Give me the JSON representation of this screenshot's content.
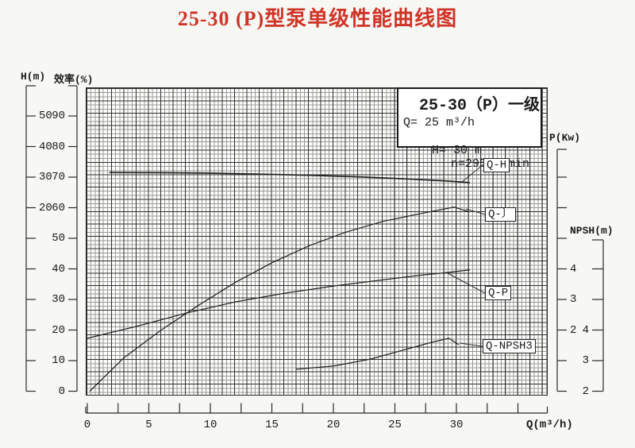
{
  "title": "25-30 (P)型泵单级性能曲线图",
  "legend": {
    "model": "25-30（P）",
    "stage": "一级",
    "flow": "Q= 25 m³/h",
    "head": "H= 30 m",
    "speed": "n=2950r/min"
  },
  "axes": {
    "h": {
      "label": "H(m)",
      "ticks": [
        "50",
        "40",
        "30",
        "20"
      ]
    },
    "eff": {
      "label": "效率(%)",
      "ticks": [
        "90",
        "80",
        "70",
        "60",
        "50",
        "40",
        "30",
        "20",
        "10",
        "0"
      ]
    },
    "p": {
      "label": "P(Kw)",
      "ticks": [
        "4",
        "3",
        "2"
      ]
    },
    "npsh": {
      "label": "NPSH(m)",
      "ticks": [
        "4",
        "3",
        "2"
      ]
    },
    "q": {
      "label": "Q(m³/h)",
      "ticks": [
        "0",
        "5",
        "10",
        "15",
        "20",
        "25",
        "30"
      ]
    }
  },
  "curve_labels": {
    "qh": "Q-H",
    "qeta": "Q-〕",
    "qp": "Q-P",
    "qnpsh": "Q-NPSH3"
  },
  "chart_data": {
    "type": "line",
    "title": "25-30 (P)型泵单级性能曲线图",
    "xlabel": "Q(m³/h)",
    "x_range": [
      0,
      35
    ],
    "x_minor_tick_step": 2.5,
    "x_labeled_tick_step": 5,
    "grid": true,
    "y_axes": [
      {
        "id": "H",
        "label": "H(m)",
        "labeled_ticks": [
          20,
          30,
          40,
          50
        ]
      },
      {
        "id": "eff",
        "label": "效率(%)",
        "labeled_ticks": [
          0,
          10,
          20,
          30,
          40,
          50,
          60,
          70,
          80,
          90
        ]
      },
      {
        "id": "P",
        "label": "P(Kw)",
        "labeled_ticks": [
          2,
          3,
          4
        ]
      },
      {
        "id": "NPSH",
        "label": "NPSH(m)",
        "labeled_ticks": [
          2,
          3,
          4
        ]
      }
    ],
    "series": [
      {
        "name": "Q-H",
        "y_axis": "H",
        "display_label": "Q-H",
        "points": [
          [
            1.8,
            31.5
          ],
          [
            6,
            31.45
          ],
          [
            10,
            31.3
          ],
          [
            14,
            31.0
          ],
          [
            18,
            30.6
          ],
          [
            22,
            30.1
          ],
          [
            26,
            29.4
          ],
          [
            29,
            28.8
          ],
          [
            31.1,
            28.2
          ]
        ]
      },
      {
        "name": "Q-η",
        "y_axis": "eff",
        "display_label": "Q-〕",
        "points": [
          [
            0.2,
            0
          ],
          [
            3,
            11
          ],
          [
            6,
            20
          ],
          [
            9,
            28
          ],
          [
            12,
            35.5
          ],
          [
            15,
            42
          ],
          [
            18,
            47.5
          ],
          [
            21,
            52
          ],
          [
            24,
            55.5
          ],
          [
            27,
            58
          ],
          [
            29.8,
            60.2
          ],
          [
            31.1,
            58.6
          ]
        ]
      },
      {
        "name": "Q-P",
        "y_axis": "P",
        "display_label": "Q-P",
        "points": [
          [
            0,
            1.73
          ],
          [
            4,
            2.12
          ],
          [
            8,
            2.55
          ],
          [
            12,
            2.92
          ],
          [
            16,
            3.2
          ],
          [
            20,
            3.44
          ],
          [
            24,
            3.64
          ],
          [
            27,
            3.79
          ],
          [
            29,
            3.87
          ],
          [
            31.1,
            3.97
          ]
        ]
      },
      {
        "name": "Q-NPSH3",
        "y_axis": "NPSH",
        "display_label": "Q-NPSH3",
        "points": [
          [
            17,
            2.72
          ],
          [
            20,
            2.82
          ],
          [
            23,
            3.05
          ],
          [
            26,
            3.38
          ],
          [
            28,
            3.6
          ],
          [
            29.4,
            3.73
          ],
          [
            30.2,
            3.52
          ]
        ]
      }
    ],
    "annotations": {
      "model": "25-30（P）",
      "stage": "一级",
      "rated_flow": "Q= 25 m³/h",
      "rated_head": "H= 30 m",
      "speed": "n=2950r/min"
    }
  }
}
